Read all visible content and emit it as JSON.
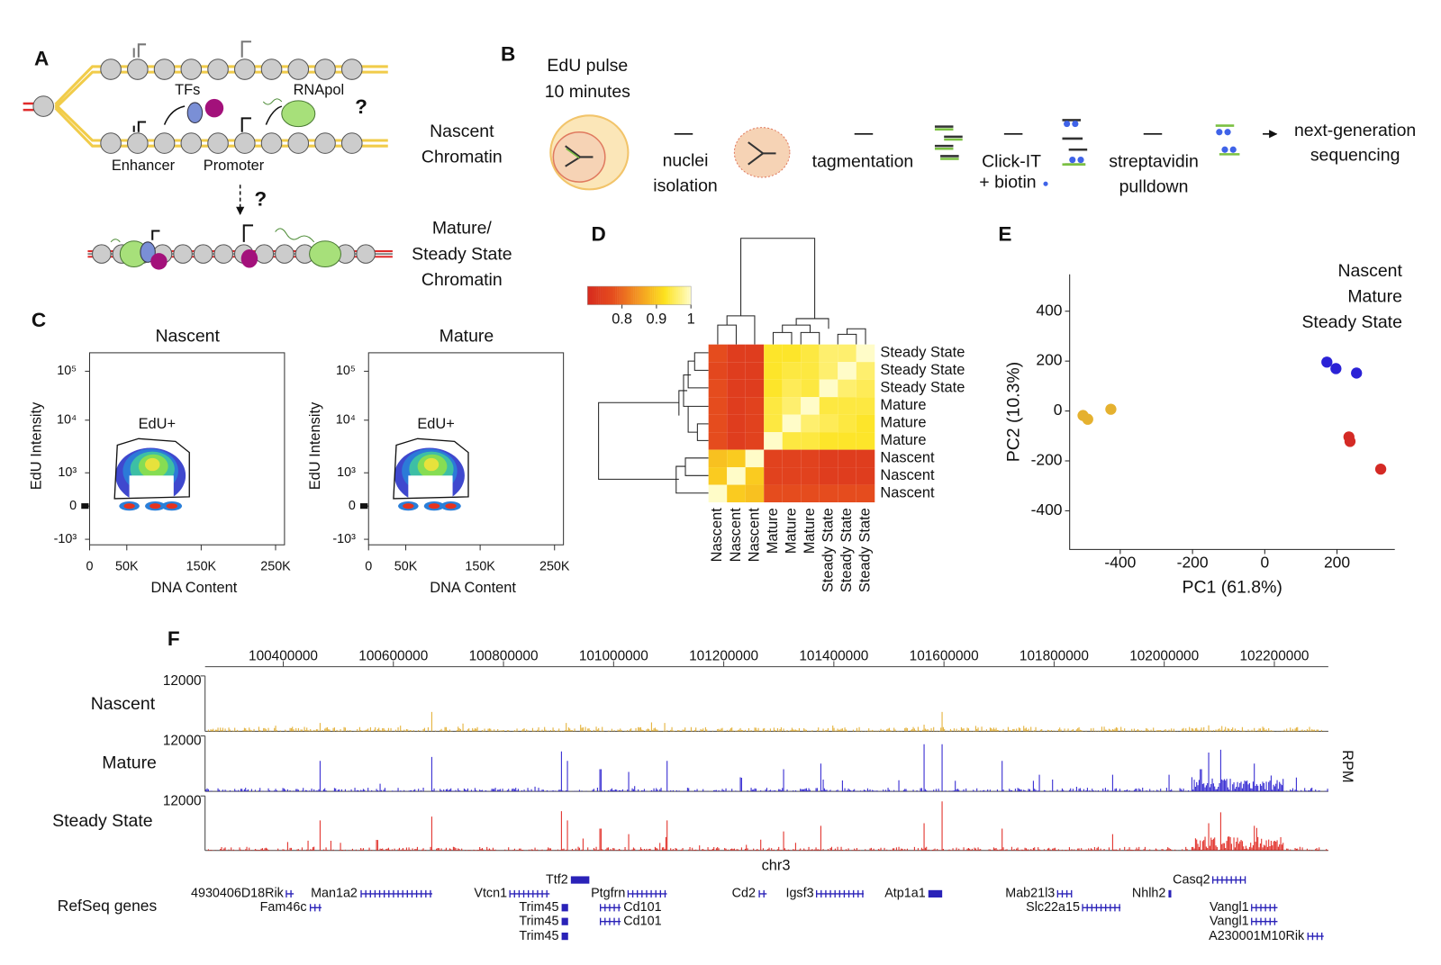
{
  "panel_a": {
    "label": "A",
    "tfs": "TFs",
    "rnapol": "RNApol",
    "question": "?",
    "enhancer": "Enhancer",
    "promoter": "Promoter",
    "nascent_label": [
      "Nascent",
      "Chromatin"
    ],
    "question2": "?",
    "mature_label": [
      "Mature/",
      "Steady State",
      "Chromatin"
    ]
  },
  "panel_b": {
    "label": "B",
    "pulse": "EdU pulse",
    "duration": "10 minutes",
    "steps": [
      [
        "nuclei",
        "isolation"
      ],
      [
        "tagmentation"
      ],
      [
        "Click-IT",
        "+ biotin"
      ],
      [
        "streptavidin",
        "pulldown"
      ],
      [
        "next-generation",
        "sequencing"
      ]
    ]
  },
  "panel_c": {
    "label": "C",
    "plots": [
      {
        "title": "Nascent"
      },
      {
        "title": "Mature"
      }
    ],
    "ylabel": "EdU Intensity",
    "xlabel": "DNA Content",
    "gate": "EdU+",
    "yticks": [
      {
        "value": -1000,
        "label": "-10³"
      },
      0,
      {
        "value": 1000,
        "label": "10³"
      },
      {
        "value": 10000,
        "label": "10⁴"
      },
      {
        "value": 100000,
        "label": "10⁵"
      }
    ],
    "xlim": [
      0,
      262000
    ],
    "xticks": [
      0,
      {
        "value": 50000,
        "label": "50K"
      },
      {
        "value": 150000,
        "label": "150K"
      },
      {
        "value": 250000,
        "label": "250K"
      }
    ]
  },
  "chart_data": [
    {
      "type": "heatmap",
      "panel": "D",
      "clim": [
        0.7,
        1
      ],
      "cticks": [
        0.8,
        0.9,
        1
      ],
      "colors": [
        "#d62a1e",
        "#e64e1e",
        "#f39a22",
        "#fde31f",
        "#fffcc8"
      ],
      "rows": [
        "Steady State",
        "Steady State",
        "Steady State",
        "Mature",
        "Mature",
        "Mature",
        "Nascent",
        "Nascent",
        "Nascent"
      ],
      "row_colors": [
        "#d42a25",
        "#d42a25",
        "#d42a25",
        "#2b22d6",
        "#2b22d6",
        "#2b22d6",
        "#d9961e",
        "#d9961e",
        "#d9961e"
      ],
      "columns": [
        "Nascent",
        "Nascent",
        "Nascent",
        "Mature",
        "Mature",
        "Mature",
        "Steady State",
        "Steady State",
        "Steady State"
      ],
      "column_colors": [
        "#d9961e",
        "#d9961e",
        "#d9961e",
        "#2b22d6",
        "#2b22d6",
        "#2b22d6",
        "#d42a25",
        "#d42a25",
        "#d42a25"
      ],
      "values": [
        [
          0.77,
          0.74,
          0.74,
          0.93,
          0.93,
          0.94,
          0.96,
          0.96,
          1
        ],
        [
          0.76,
          0.74,
          0.74,
          0.93,
          0.94,
          0.94,
          0.96,
          1,
          0.96
        ],
        [
          0.77,
          0.74,
          0.74,
          0.93,
          0.95,
          0.94,
          1,
          0.96,
          0.95
        ],
        [
          0.77,
          0.74,
          0.75,
          0.94,
          0.96,
          1,
          0.94,
          0.94,
          0.94
        ],
        [
          0.77,
          0.74,
          0.75,
          0.94,
          1,
          0.96,
          0.95,
          0.94,
          0.93
        ],
        [
          0.77,
          0.74,
          0.75,
          1,
          0.94,
          0.94,
          0.93,
          0.93,
          0.93
        ],
        [
          0.89,
          0.9,
          1,
          0.75,
          0.75,
          0.75,
          0.74,
          0.74,
          0.74
        ],
        [
          0.9,
          1,
          0.9,
          0.75,
          0.75,
          0.75,
          0.74,
          0.74,
          0.74
        ],
        [
          1,
          0.9,
          0.89,
          0.77,
          0.77,
          0.77,
          0.77,
          0.77,
          0.77
        ]
      ]
    },
    {
      "type": "scatter",
      "panel": "E",
      "xlabel": "PC1 (61.8%)",
      "ylabel": "PC2 (10.3%)",
      "xlim": [
        -540,
        360
      ],
      "ylim": [
        -555,
        548
      ],
      "xticks": [
        -400,
        -200,
        0,
        200
      ],
      "yticks": [
        -400,
        -200,
        0,
        200,
        400
      ],
      "legend": "top-right",
      "series": [
        {
          "name": "Nascent",
          "color": "#e5b12f",
          "x": [
            -503,
            -490,
            -426
          ],
          "y": [
            -18,
            -33,
            7
          ]
        },
        {
          "name": "Mature",
          "color": "#2b22d6",
          "x": [
            172,
            197,
            254
          ],
          "y": [
            196,
            170,
            152
          ]
        },
        {
          "name": "Steady State",
          "color": "#d42a25",
          "x": [
            233,
            236,
            321
          ],
          "y": [
            -104,
            -122,
            -233
          ]
        }
      ]
    }
  ],
  "panel_f": {
    "label": "F",
    "xlim": [
      100258000,
      102298000
    ],
    "xticks": [
      100400000,
      100600000,
      100800000,
      101000000,
      101200000,
      101400000,
      101600000,
      101800000,
      102000000,
      102200000
    ],
    "tracks": [
      {
        "name": "Nascent",
        "ymax": 12000,
        "color": "#e2ad2e"
      },
      {
        "name": "Mature",
        "ymax": 12000,
        "color": "#2a1fcf"
      },
      {
        "name": "Steady State",
        "ymax": 12000,
        "color": "#e0261f"
      }
    ],
    "unit": "RPM",
    "chromosome": "chr3",
    "genes_label": "RefSeq genes",
    "genes": [
      "4930406D18Rik",
      "Fam46c",
      "Man1a2",
      "Vtcn1",
      "Ttf2",
      "Trim45",
      "Trim45",
      "Trim45",
      "Ptgfrn",
      "Cd101",
      "Cd101",
      "Cd2",
      "Igsf3",
      "Atp1a1",
      "Mab21l3",
      "Slc22a15",
      "Nhlh2",
      "Casq2",
      "Vangl1",
      "Vangl1",
      "A230001M10Rik"
    ]
  }
}
